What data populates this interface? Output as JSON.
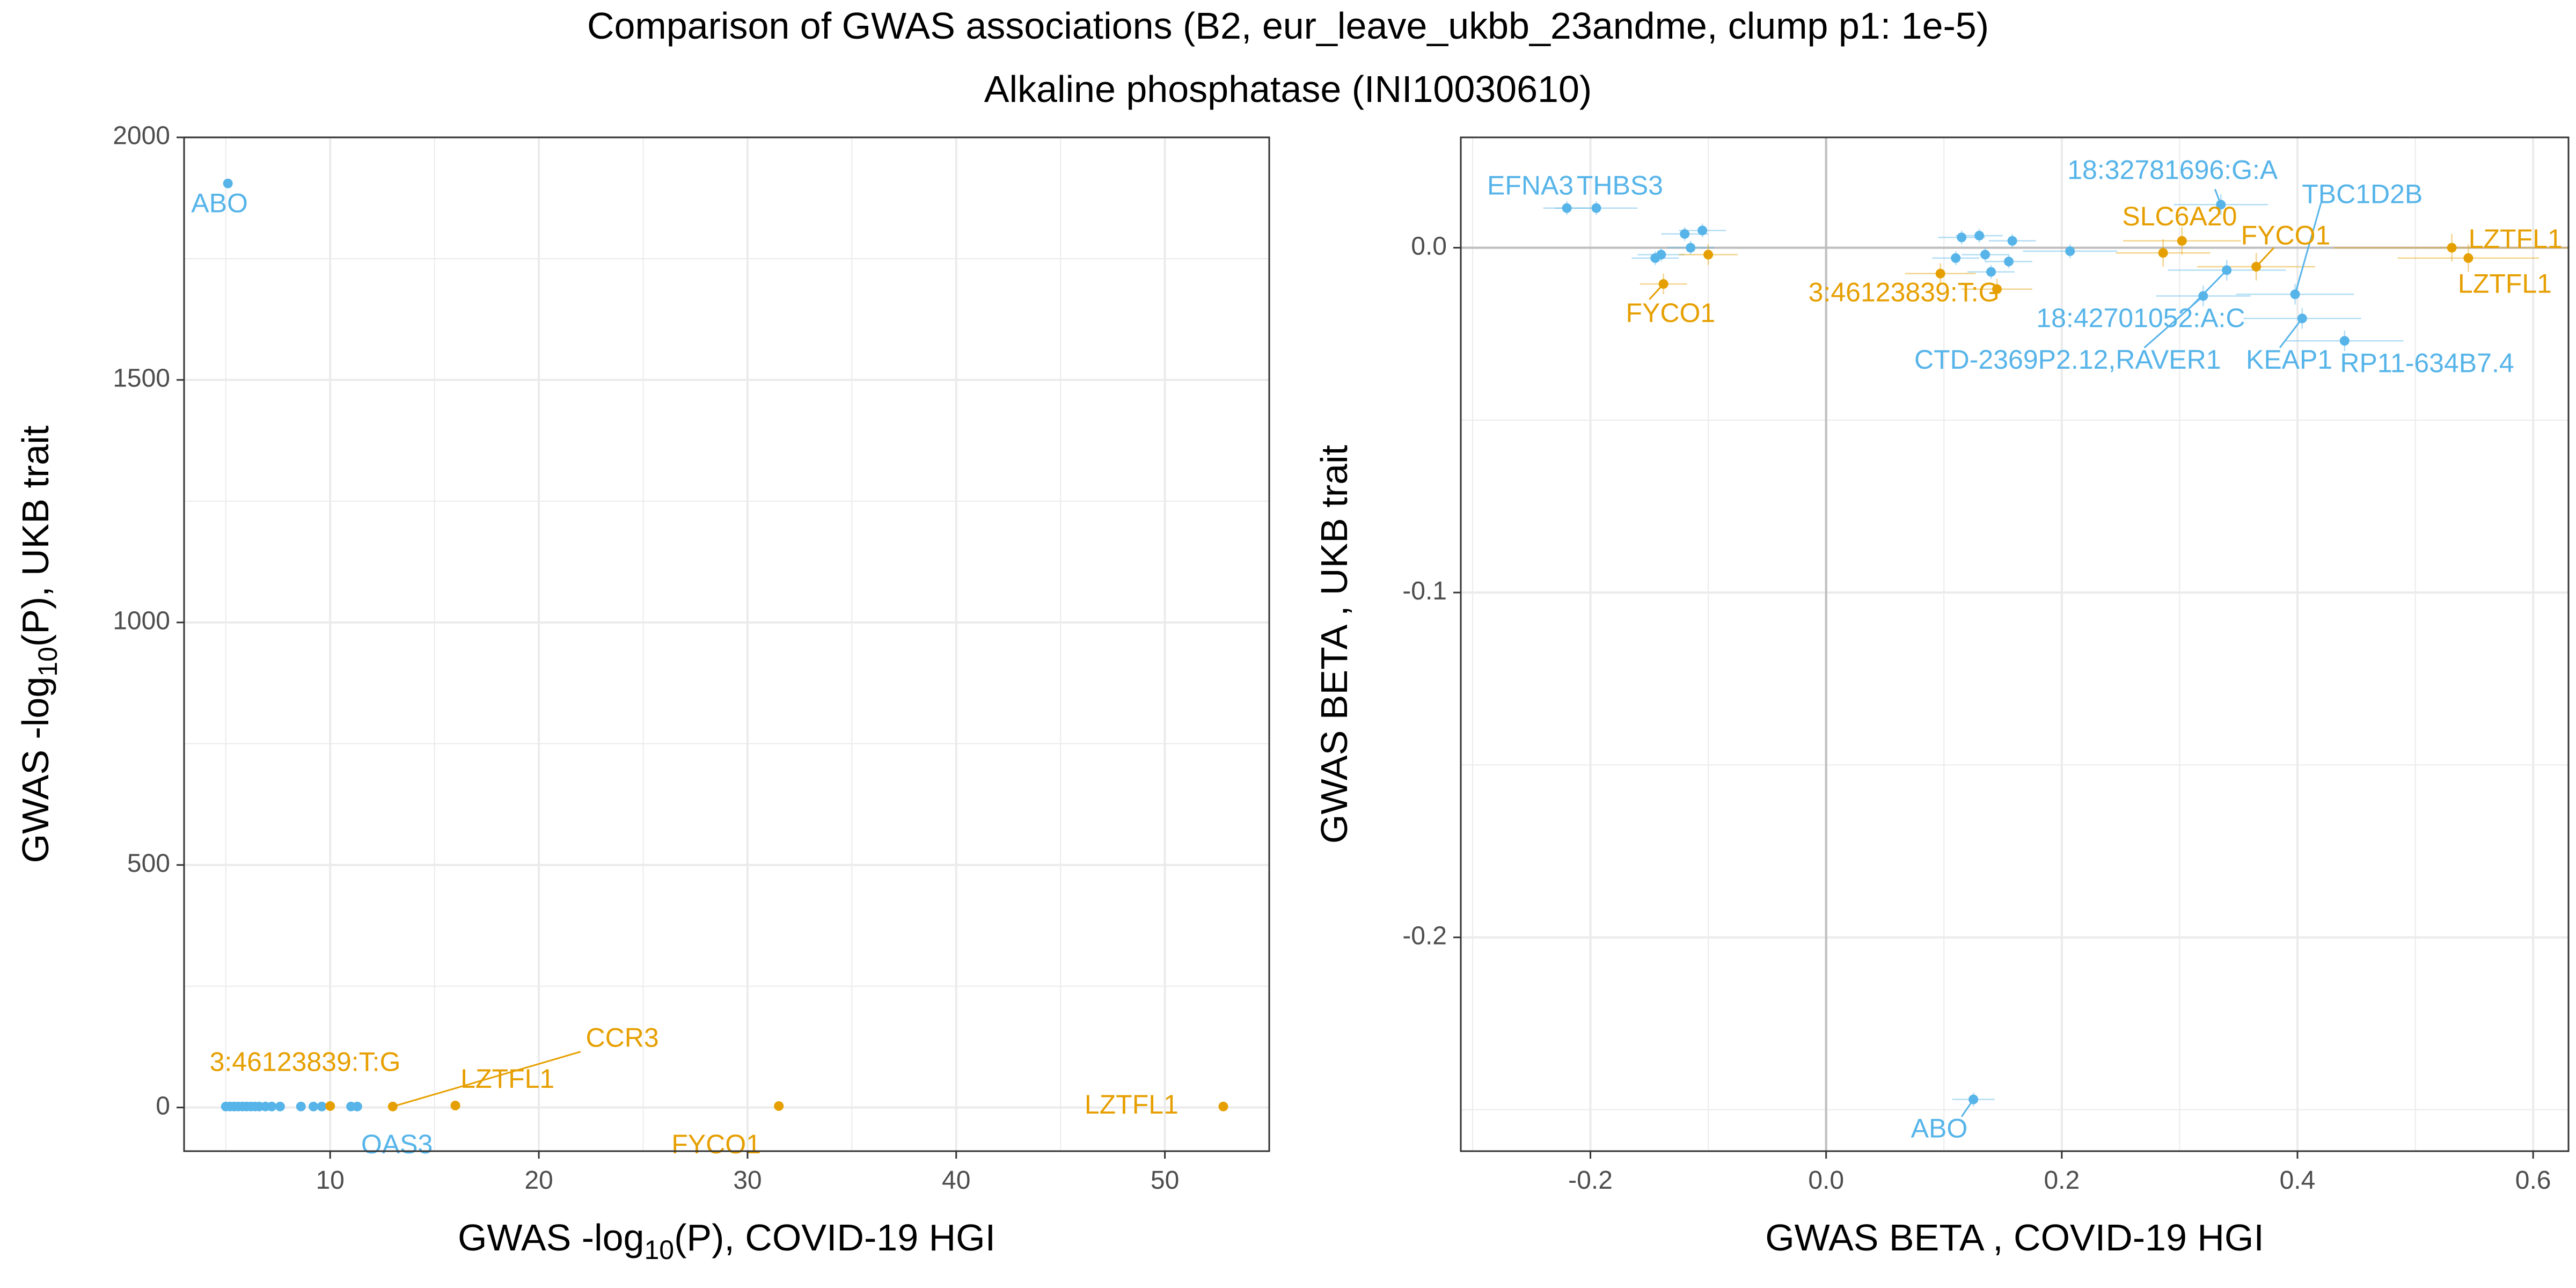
{
  "title": "Comparison of GWAS associations (B2, eur_leave_ukbb_23andme, clump p1: 1e-5)",
  "subtitle": "Alkaline phosphatase (INI10030610)",
  "colors": {
    "sig": "#E69F00",
    "other": "#56B4E9",
    "grid": "#EBEBEB",
    "zero": "#BEBEBE"
  },
  "chart_data": [
    {
      "type": "scatter",
      "xlabel": {
        "pre": "GWAS -log",
        "sub": "10",
        "post": "(P), COVID-19 HGI"
      },
      "ylabel": {
        "pre": "GWAS -log",
        "sub": "10",
        "post": "(P), UKB trait"
      },
      "xlim": [
        3,
        55
      ],
      "ylim": [
        -90,
        2000
      ],
      "xticks": [
        10,
        20,
        30,
        40,
        50
      ],
      "xtick_labels": [
        "10",
        "20",
        "30",
        "40",
        "50"
      ],
      "yticks": [
        0,
        500,
        1000,
        1500,
        2000
      ],
      "ytick_labels": [
        "0",
        "500",
        "1000",
        "1500",
        "2000"
      ],
      "grid": true,
      "points": [
        {
          "x": 5.1,
          "y": 1905,
          "group": "other"
        },
        {
          "x": 5.0,
          "y": 2,
          "group": "other"
        },
        {
          "x": 5.2,
          "y": 2,
          "group": "other"
        },
        {
          "x": 5.4,
          "y": 2,
          "group": "other"
        },
        {
          "x": 5.6,
          "y": 2,
          "group": "other"
        },
        {
          "x": 5.8,
          "y": 2,
          "group": "other"
        },
        {
          "x": 6.0,
          "y": 2,
          "group": "other"
        },
        {
          "x": 6.2,
          "y": 2,
          "group": "other"
        },
        {
          "x": 6.4,
          "y": 2,
          "group": "other"
        },
        {
          "x": 6.6,
          "y": 2,
          "group": "other"
        },
        {
          "x": 6.9,
          "y": 2,
          "group": "other"
        },
        {
          "x": 7.2,
          "y": 2,
          "group": "other"
        },
        {
          "x": 7.6,
          "y": 2,
          "group": "other"
        },
        {
          "x": 8.6,
          "y": 2,
          "group": "other"
        },
        {
          "x": 9.2,
          "y": 2,
          "group": "other"
        },
        {
          "x": 9.6,
          "y": 2,
          "group": "other"
        },
        {
          "x": 11.0,
          "y": 2,
          "group": "other"
        },
        {
          "x": 11.3,
          "y": 2,
          "group": "other"
        },
        {
          "x": 10.0,
          "y": 3,
          "group": "sig"
        },
        {
          "x": 13.0,
          "y": 2,
          "group": "sig"
        },
        {
          "x": 16.0,
          "y": 4,
          "group": "sig"
        },
        {
          "x": 31.5,
          "y": 3,
          "group": "sig"
        },
        {
          "x": 52.8,
          "y": 2,
          "group": "sig"
        }
      ],
      "labels": [
        {
          "text": "ABO",
          "x": 4.7,
          "y": 1860,
          "group": "other"
        },
        {
          "text": "OAS3",
          "x": 13.2,
          "y": -80,
          "group": "other"
        },
        {
          "text": "3:46123839:T:G",
          "x": 8.8,
          "y": 90,
          "group": "sig"
        },
        {
          "text": "LZTFL1",
          "x": 18.5,
          "y": 55,
          "group": "sig"
        },
        {
          "text": "CCR3",
          "x": 24.0,
          "y": 140,
          "group": "sig"
        },
        {
          "text": "FYCO1",
          "x": 28.5,
          "y": -80,
          "group": "sig"
        },
        {
          "text": "LZTFL1",
          "x": 48.4,
          "y": 2,
          "group": "sig"
        }
      ],
      "segments": [
        {
          "x1": 13.0,
          "y1": 2,
          "x2": 22.0,
          "y2": 115,
          "group": "sig"
        }
      ]
    },
    {
      "type": "scatter",
      "xlabel": {
        "pre": "GWAS BETA , COVID-19 HGI",
        "sub": "",
        "post": ""
      },
      "ylabel": {
        "pre": "GWAS BETA , UKB trait",
        "sub": "",
        "post": ""
      },
      "xlim": [
        -0.31,
        0.63
      ],
      "ylim": [
        -0.262,
        0.032
      ],
      "xticks": [
        -0.2,
        0.0,
        0.2,
        0.4,
        0.6
      ],
      "xtick_labels": [
        "-0.2",
        "0.0",
        "0.2",
        "0.4",
        "0.6"
      ],
      "yticks": [
        -0.2,
        -0.1,
        0.0
      ],
      "ytick_labels": [
        "-0.2",
        "-0.1",
        "0.0"
      ],
      "grid": true,
      "points": [
        {
          "x": -0.22,
          "y": 0.0115,
          "xerr": 0.02,
          "yerr": 0.002,
          "group": "other"
        },
        {
          "x": -0.195,
          "y": 0.0115,
          "xerr": 0.035,
          "yerr": 0.002,
          "group": "other"
        },
        {
          "x": -0.145,
          "y": -0.003,
          "xerr": 0.02,
          "yerr": 0.002,
          "group": "other"
        },
        {
          "x": -0.14,
          "y": -0.002,
          "xerr": 0.02,
          "yerr": 0.002,
          "group": "other"
        },
        {
          "x": -0.12,
          "y": 0.004,
          "xerr": 0.02,
          "yerr": 0.002,
          "group": "other"
        },
        {
          "x": -0.115,
          "y": 0.0,
          "xerr": 0.02,
          "yerr": 0.002,
          "group": "other"
        },
        {
          "x": -0.105,
          "y": 0.005,
          "xerr": 0.02,
          "yerr": 0.002,
          "group": "other"
        },
        {
          "x": 0.11,
          "y": -0.003,
          "xerr": 0.02,
          "yerr": 0.002,
          "group": "other"
        },
        {
          "x": 0.115,
          "y": 0.003,
          "xerr": 0.02,
          "yerr": 0.002,
          "group": "other"
        },
        {
          "x": 0.13,
          "y": 0.0035,
          "xerr": 0.02,
          "yerr": 0.002,
          "group": "other"
        },
        {
          "x": 0.135,
          "y": -0.002,
          "xerr": 0.02,
          "yerr": 0.002,
          "group": "other"
        },
        {
          "x": 0.14,
          "y": -0.007,
          "xerr": 0.02,
          "yerr": 0.002,
          "group": "other"
        },
        {
          "x": 0.155,
          "y": -0.004,
          "xerr": 0.02,
          "yerr": 0.002,
          "group": "other"
        },
        {
          "x": 0.158,
          "y": 0.002,
          "xerr": 0.02,
          "yerr": 0.002,
          "group": "other"
        },
        {
          "x": 0.207,
          "y": -0.001,
          "xerr": 0.04,
          "yerr": 0.002,
          "group": "other"
        },
        {
          "x": 0.32,
          "y": -0.014,
          "xerr": 0.04,
          "yerr": 0.003,
          "group": "other"
        },
        {
          "x": 0.335,
          "y": 0.0125,
          "xerr": 0.04,
          "yerr": 0.003,
          "group": "other"
        },
        {
          "x": 0.34,
          "y": -0.0065,
          "xerr": 0.05,
          "yerr": 0.003,
          "group": "other"
        },
        {
          "x": 0.398,
          "y": -0.0135,
          "xerr": 0.05,
          "yerr": 0.003,
          "group": "other"
        },
        {
          "x": 0.404,
          "y": -0.0205,
          "xerr": 0.05,
          "yerr": 0.003,
          "group": "other"
        },
        {
          "x": 0.44,
          "y": -0.027,
          "xerr": 0.05,
          "yerr": 0.003,
          "group": "other"
        },
        {
          "x": 0.125,
          "y": -0.247,
          "xerr": 0.018,
          "yerr": 0.002,
          "group": "other"
        },
        {
          "x": -0.1,
          "y": -0.002,
          "xerr": 0.025,
          "yerr": 0.003,
          "group": "sig"
        },
        {
          "x": -0.138,
          "y": -0.0105,
          "xerr": 0.02,
          "yerr": 0.003,
          "group": "sig"
        },
        {
          "x": 0.097,
          "y": -0.0075,
          "xerr": 0.03,
          "yerr": 0.003,
          "group": "sig"
        },
        {
          "x": 0.145,
          "y": -0.012,
          "xerr": 0.03,
          "yerr": 0.003,
          "group": "sig"
        },
        {
          "x": 0.286,
          "y": -0.0015,
          "xerr": 0.04,
          "yerr": 0.004,
          "group": "sig"
        },
        {
          "x": 0.302,
          "y": 0.002,
          "xerr": 0.05,
          "yerr": 0.004,
          "group": "sig"
        },
        {
          "x": 0.365,
          "y": -0.0055,
          "xerr": 0.05,
          "yerr": 0.004,
          "group": "sig"
        },
        {
          "x": 0.531,
          "y": 0.0,
          "xerr": 0.1,
          "yerr": 0.004,
          "group": "sig"
        },
        {
          "x": 0.545,
          "y": -0.003,
          "xerr": 0.06,
          "yerr": 0.004,
          "group": "sig"
        }
      ],
      "labels": [
        {
          "text": "EFNA3",
          "x": -0.251,
          "y": 0.0175,
          "group": "other"
        },
        {
          "text": "THBS3",
          "x": -0.175,
          "y": 0.0175,
          "group": "other"
        },
        {
          "text": "18:32781696:G:A",
          "x": 0.294,
          "y": 0.022,
          "group": "other"
        },
        {
          "text": "TBC1D2B",
          "x": 0.455,
          "y": 0.015,
          "group": "other"
        },
        {
          "text": "18:42701052:A:C",
          "x": 0.267,
          "y": -0.021,
          "group": "other"
        },
        {
          "text": "CTD-2369P2.12,RAVER1",
          "x": 0.205,
          "y": -0.033,
          "group": "other"
        },
        {
          "text": "KEAP1",
          "x": 0.393,
          "y": -0.033,
          "group": "other"
        },
        {
          "text": "RP11-634B7.4",
          "x": 0.51,
          "y": -0.034,
          "group": "other"
        },
        {
          "text": "ABO",
          "x": 0.096,
          "y": -0.256,
          "group": "other"
        },
        {
          "text": "SLC6A20",
          "x": 0.3,
          "y": 0.0085,
          "group": "sig"
        },
        {
          "text": "FYCO1",
          "x": 0.39,
          "y": 0.003,
          "group": "sig"
        },
        {
          "text": "LZTFL1",
          "x": 0.585,
          "y": 0.002,
          "group": "sig"
        },
        {
          "text": "LZTFL1",
          "x": 0.576,
          "y": -0.011,
          "group": "sig"
        },
        {
          "text": "FYCO1",
          "x": -0.132,
          "y": -0.0195,
          "group": "sig"
        },
        {
          "text": "3:46123839:T:G",
          "x": 0.066,
          "y": -0.0135,
          "group": "sig"
        }
      ],
      "segments": [
        {
          "x1": 0.335,
          "y1": 0.0125,
          "x2": 0.33,
          "y2": 0.017,
          "group": "other"
        },
        {
          "x1": 0.398,
          "y1": -0.0135,
          "x2": 0.42,
          "y2": 0.013,
          "group": "other"
        },
        {
          "x1": 0.34,
          "y1": -0.0065,
          "x2": 0.31,
          "y2": -0.017,
          "group": "other"
        },
        {
          "x1": 0.32,
          "y1": -0.014,
          "x2": 0.27,
          "y2": -0.029,
          "group": "other"
        },
        {
          "x1": 0.404,
          "y1": -0.0205,
          "x2": 0.385,
          "y2": -0.029,
          "group": "other"
        },
        {
          "x1": 0.125,
          "y1": -0.247,
          "x2": 0.115,
          "y2": -0.252,
          "group": "other"
        },
        {
          "x1": -0.138,
          "y1": -0.0105,
          "x2": -0.15,
          "y2": -0.015,
          "group": "sig"
        },
        {
          "x1": 0.365,
          "y1": -0.0055,
          "x2": 0.38,
          "y2": 0.0,
          "group": "sig"
        }
      ]
    }
  ]
}
